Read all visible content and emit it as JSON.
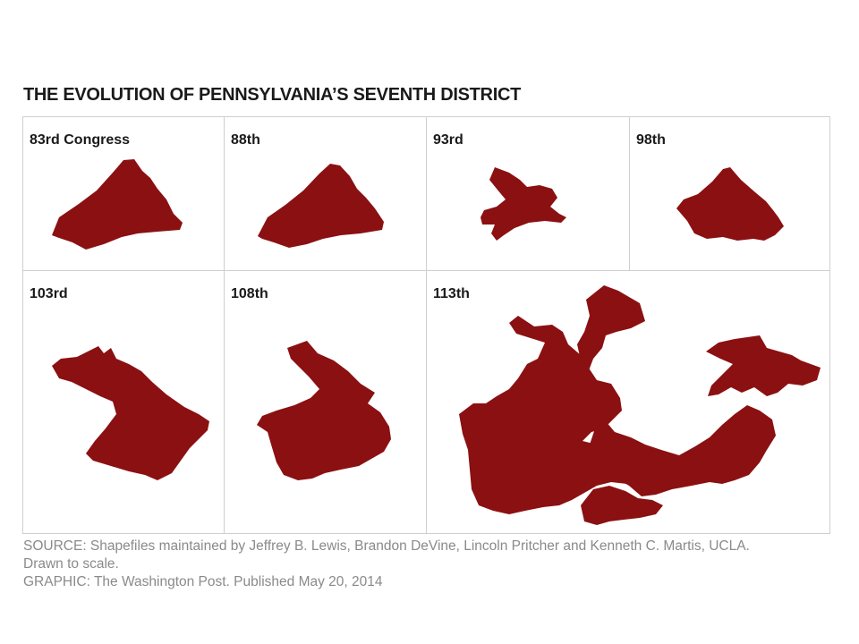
{
  "title": "THE EVOLUTION OF PENNSYLVANIA’S SEVENTH DISTRICT",
  "panels": [
    {
      "label": "83rd Congress"
    },
    {
      "label": "88th"
    },
    {
      "label": "93rd"
    },
    {
      "label": "98th"
    },
    {
      "label": "103rd"
    },
    {
      "label": "108th"
    },
    {
      "label": "113th"
    }
  ],
  "map_color": "#8b1012",
  "source_line1": "SOURCE: Shapefiles maintained by Jeffrey B. Lewis, Brandon DeVine, Lincoln Pritcher and Kenneth C. Martis, UCLA.",
  "source_line2": "Drawn to scale.",
  "graphic_credit": "GRAPHIC: The Washington Post. Published May 20, 2014"
}
